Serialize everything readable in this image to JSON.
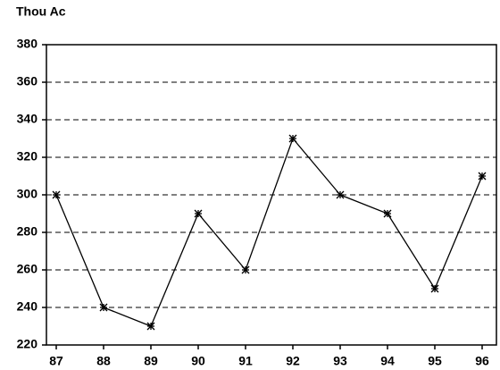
{
  "chart_data": {
    "type": "line",
    "title": "Thou Ac",
    "categories": [
      "87",
      "88",
      "89",
      "90",
      "91",
      "92",
      "93",
      "94",
      "95",
      "96"
    ],
    "values": [
      300,
      240,
      230,
      290,
      260,
      330,
      300,
      290,
      250,
      310
    ],
    "color": "#000000",
    "ylim": [
      220,
      380
    ],
    "yticks": [
      220,
      240,
      260,
      280,
      300,
      320,
      340,
      360,
      380
    ],
    "grid": true
  }
}
